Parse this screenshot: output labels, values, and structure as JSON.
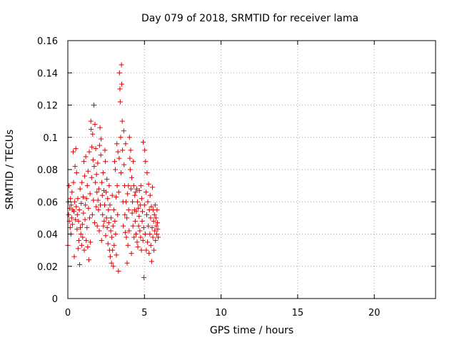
{
  "chart_data": {
    "type": "scatter",
    "title": "Day 079 of 2018, SRMTID for receiver lama",
    "xlabel": "GPS time / hours",
    "ylabel": "SRMTID / TECUs",
    "xlim": [
      0,
      24
    ],
    "ylim": [
      0,
      0.16
    ],
    "xticks": [
      0,
      5,
      10,
      15,
      20
    ],
    "yticks": [
      0,
      0.02,
      0.04,
      0.06,
      0.08,
      0.1,
      0.12,
      0.14,
      0.16
    ],
    "xtick_labels": [
      "0",
      "5",
      "10",
      "15",
      "20"
    ],
    "ytick_labels": [
      "0",
      "0.02",
      "0.04",
      "0.06",
      "0.08",
      "0.1",
      "0.12",
      "0.14",
      "0.16"
    ],
    "grid": true,
    "marker": "+",
    "color": "#e00000",
    "series": [
      {
        "name": "SRMTID",
        "points": [
          [
            0.0,
            0.033
          ],
          [
            0.02,
            0.06
          ],
          [
            0.05,
            0.052
          ],
          [
            0.07,
            0.07
          ],
          [
            0.1,
            0.048
          ],
          [
            0.12,
            0.056
          ],
          [
            0.15,
            0.044
          ],
          [
            0.17,
            0.062
          ],
          [
            0.2,
            0.04
          ],
          [
            0.22,
            0.058
          ],
          [
            0.25,
            0.05
          ],
          [
            0.27,
            0.066
          ],
          [
            0.3,
            0.046
          ],
          [
            0.32,
            0.055
          ],
          [
            0.35,
            0.091
          ],
          [
            0.37,
            0.072
          ],
          [
            0.4,
            0.054
          ],
          [
            0.42,
            0.026
          ],
          [
            0.45,
            0.06
          ],
          [
            0.47,
            0.082
          ],
          [
            0.5,
            0.049
          ],
          [
            0.52,
            0.093
          ],
          [
            0.55,
            0.057
          ],
          [
            0.57,
            0.078
          ],
          [
            0.6,
            0.043
          ],
          [
            0.62,
            0.052
          ],
          [
            0.65,
            0.062
          ],
          [
            0.67,
            0.031
          ],
          [
            0.7,
            0.048
          ],
          [
            0.72,
            0.036
          ],
          [
            0.75,
            0.055
          ],
          [
            0.77,
            0.021
          ],
          [
            0.8,
            0.068
          ],
          [
            0.82,
            0.044
          ],
          [
            0.85,
            0.04
          ],
          [
            0.87,
            0.059
          ],
          [
            0.9,
            0.033
          ],
          [
            0.92,
            0.072
          ],
          [
            0.95,
            0.046
          ],
          [
            0.97,
            0.038
          ],
          [
            1.0,
            0.063
          ],
          [
            1.02,
            0.053
          ],
          [
            1.05,
            0.085
          ],
          [
            1.07,
            0.03
          ],
          [
            1.1,
            0.076
          ],
          [
            1.12,
            0.049
          ],
          [
            1.15,
            0.058
          ],
          [
            1.17,
            0.088
          ],
          [
            1.2,
            0.036
          ],
          [
            1.22,
            0.062
          ],
          [
            1.25,
            0.044
          ],
          [
            1.27,
            0.07
          ],
          [
            1.3,
            0.032
          ],
          [
            1.32,
            0.079
          ],
          [
            1.35,
            0.056
          ],
          [
            1.37,
            0.024
          ],
          [
            1.4,
            0.091
          ],
          [
            1.42,
            0.05
          ],
          [
            1.45,
            0.065
          ],
          [
            1.47,
            0.035
          ],
          [
            1.5,
            0.11
          ],
          [
            1.52,
            0.105
          ],
          [
            1.55,
            0.075
          ],
          [
            1.57,
            0.094
          ],
          [
            1.6,
            0.052
          ],
          [
            1.62,
            0.102
          ],
          [
            1.65,
            0.086
          ],
          [
            1.67,
            0.061
          ],
          [
            1.7,
            0.12
          ],
          [
            1.72,
            0.082
          ],
          [
            1.75,
            0.047
          ],
          [
            1.77,
            0.108
          ],
          [
            1.8,
            0.072
          ],
          [
            1.82,
            0.093
          ],
          [
            1.85,
            0.057
          ],
          [
            1.87,
            0.077
          ],
          [
            1.9,
            0.066
          ],
          [
            1.92,
            0.045
          ],
          [
            1.95,
            0.084
          ],
          [
            1.97,
            0.061
          ],
          [
            2.0,
            0.055
          ],
          [
            2.02,
            0.068
          ],
          [
            2.05,
            0.042
          ],
          [
            2.07,
            0.095
          ],
          [
            2.1,
            0.106
          ],
          [
            2.12,
            0.058
          ],
          [
            2.15,
            0.089
          ],
          [
            2.17,
            0.099
          ],
          [
            2.2,
            0.036
          ],
          [
            2.22,
            0.072
          ],
          [
            2.25,
            0.064
          ],
          [
            2.27,
            0.052
          ],
          [
            2.3,
            0.078
          ],
          [
            2.32,
            0.045
          ],
          [
            2.35,
            0.067
          ],
          [
            2.37,
            0.048
          ],
          [
            2.4,
            0.058
          ],
          [
            2.42,
            0.092
          ],
          [
            2.45,
            0.085
          ],
          [
            2.47,
            0.039
          ],
          [
            2.5,
            0.066
          ],
          [
            2.52,
            0.05
          ],
          [
            2.55,
            0.074
          ],
          [
            2.57,
            0.044
          ],
          [
            2.6,
            0.062
          ],
          [
            2.62,
            0.034
          ],
          [
            2.65,
            0.055
          ],
          [
            2.67,
            0.047
          ],
          [
            2.7,
            0.07
          ],
          [
            2.72,
            0.03
          ],
          [
            2.75,
            0.058
          ],
          [
            2.77,
            0.026
          ],
          [
            2.8,
            0.042
          ],
          [
            2.82,
            0.05
          ],
          [
            2.85,
            0.022
          ],
          [
            2.87,
            0.038
          ],
          [
            2.9,
            0.064
          ],
          [
            2.92,
            0.03
          ],
          [
            2.95,
            0.045
          ],
          [
            2.97,
            0.02
          ],
          [
            3.0,
            0.055
          ],
          [
            3.02,
            0.033
          ],
          [
            3.05,
            0.085
          ],
          [
            3.07,
            0.048
          ],
          [
            3.1,
            0.08
          ],
          [
            3.12,
            0.04
          ],
          [
            3.15,
            0.063
          ],
          [
            3.17,
            0.027
          ],
          [
            3.2,
            0.096
          ],
          [
            3.22,
            0.07
          ],
          [
            3.25,
            0.052
          ],
          [
            3.27,
            0.091
          ],
          [
            3.3,
            0.017
          ],
          [
            3.32,
            0.066
          ],
          [
            3.35,
            0.087
          ],
          [
            3.37,
            0.14
          ],
          [
            3.4,
            0.13
          ],
          [
            3.42,
            0.122
          ],
          [
            3.45,
            0.1
          ],
          [
            3.47,
            0.078
          ],
          [
            3.5,
            0.145
          ],
          [
            3.52,
            0.133
          ],
          [
            3.55,
            0.11
          ],
          [
            3.57,
            0.092
          ],
          [
            3.6,
            0.06
          ],
          [
            3.62,
            0.045
          ],
          [
            3.65,
            0.104
          ],
          [
            3.67,
            0.083
          ],
          [
            3.7,
            0.07
          ],
          [
            3.72,
            0.052
          ],
          [
            3.75,
            0.041
          ],
          [
            3.77,
            0.096
          ],
          [
            3.8,
            0.06
          ],
          [
            3.82,
            0.038
          ],
          [
            3.85,
            0.05
          ],
          [
            3.87,
            0.022
          ],
          [
            3.9,
            0.065
          ],
          [
            3.92,
            0.033
          ],
          [
            3.95,
            0.07
          ],
          [
            3.97,
            0.055
          ],
          [
            4.0,
            0.042
          ],
          [
            4.02,
            0.1
          ],
          [
            4.05,
            0.087
          ],
          [
            4.07,
            0.08
          ],
          [
            4.1,
            0.092
          ],
          [
            4.12,
            0.068
          ],
          [
            4.15,
            0.028
          ],
          [
            4.17,
            0.075
          ],
          [
            4.2,
            0.053
          ],
          [
            4.22,
            0.06
          ],
          [
            4.25,
            0.045
          ],
          [
            4.27,
            0.085
          ],
          [
            4.3,
            0.07
          ],
          [
            4.32,
            0.038
          ],
          [
            4.35,
            0.055
          ],
          [
            4.37,
            0.064
          ],
          [
            4.4,
            0.048
          ],
          [
            4.42,
            0.066
          ],
          [
            4.45,
            0.04
          ],
          [
            4.47,
            0.054
          ],
          [
            4.5,
            0.068
          ],
          [
            4.52,
            0.035
          ],
          [
            4.55,
            0.06
          ],
          [
            4.57,
            0.032
          ],
          [
            4.6,
            0.056
          ],
          [
            4.62,
            0.045
          ],
          [
            4.65,
            0.051
          ],
          [
            4.67,
            0.067
          ],
          [
            4.7,
            0.042
          ],
          [
            4.72,
            0.058
          ],
          [
            4.75,
            0.038
          ],
          [
            4.77,
            0.07
          ],
          [
            4.8,
            0.03
          ],
          [
            4.82,
            0.062
          ],
          [
            4.85,
            0.048
          ],
          [
            4.87,
            0.054
          ],
          [
            4.9,
            0.036
          ],
          [
            4.92,
            0.097
          ],
          [
            4.95,
            0.044
          ],
          [
            4.97,
            0.013
          ],
          [
            5.0,
            0.058
          ],
          [
            5.02,
            0.092
          ],
          [
            5.05,
            0.04
          ],
          [
            5.07,
            0.085
          ],
          [
            5.1,
            0.066
          ],
          [
            5.12,
            0.03
          ],
          [
            5.15,
            0.052
          ],
          [
            5.17,
            0.078
          ],
          [
            5.2,
            0.035
          ],
          [
            5.22,
            0.06
          ],
          [
            5.25,
            0.045
          ],
          [
            5.27,
            0.071
          ],
          [
            5.3,
            0.028
          ],
          [
            5.32,
            0.055
          ],
          [
            5.35,
            0.04
          ],
          [
            5.37,
            0.064
          ],
          [
            5.4,
            0.05
          ],
          [
            5.42,
            0.033
          ],
          [
            5.45,
            0.057
          ],
          [
            5.47,
            0.023
          ],
          [
            5.5,
            0.044
          ],
          [
            5.52,
            0.069
          ],
          [
            5.55,
            0.038
          ],
          [
            5.57,
            0.055
          ],
          [
            5.6,
            0.048
          ],
          [
            5.62,
            0.03
          ],
          [
            5.65,
            0.052
          ],
          [
            5.67,
            0.042
          ],
          [
            5.7,
            0.058
          ],
          [
            5.72,
            0.036
          ],
          [
            5.75,
            0.05
          ],
          [
            5.77,
            0.045
          ],
          [
            5.8,
            0.04
          ],
          [
            5.82,
            0.055
          ],
          [
            5.85,
            0.047
          ],
          [
            5.87,
            0.043
          ],
          [
            5.9,
            0.038
          ]
        ]
      }
    ]
  }
}
